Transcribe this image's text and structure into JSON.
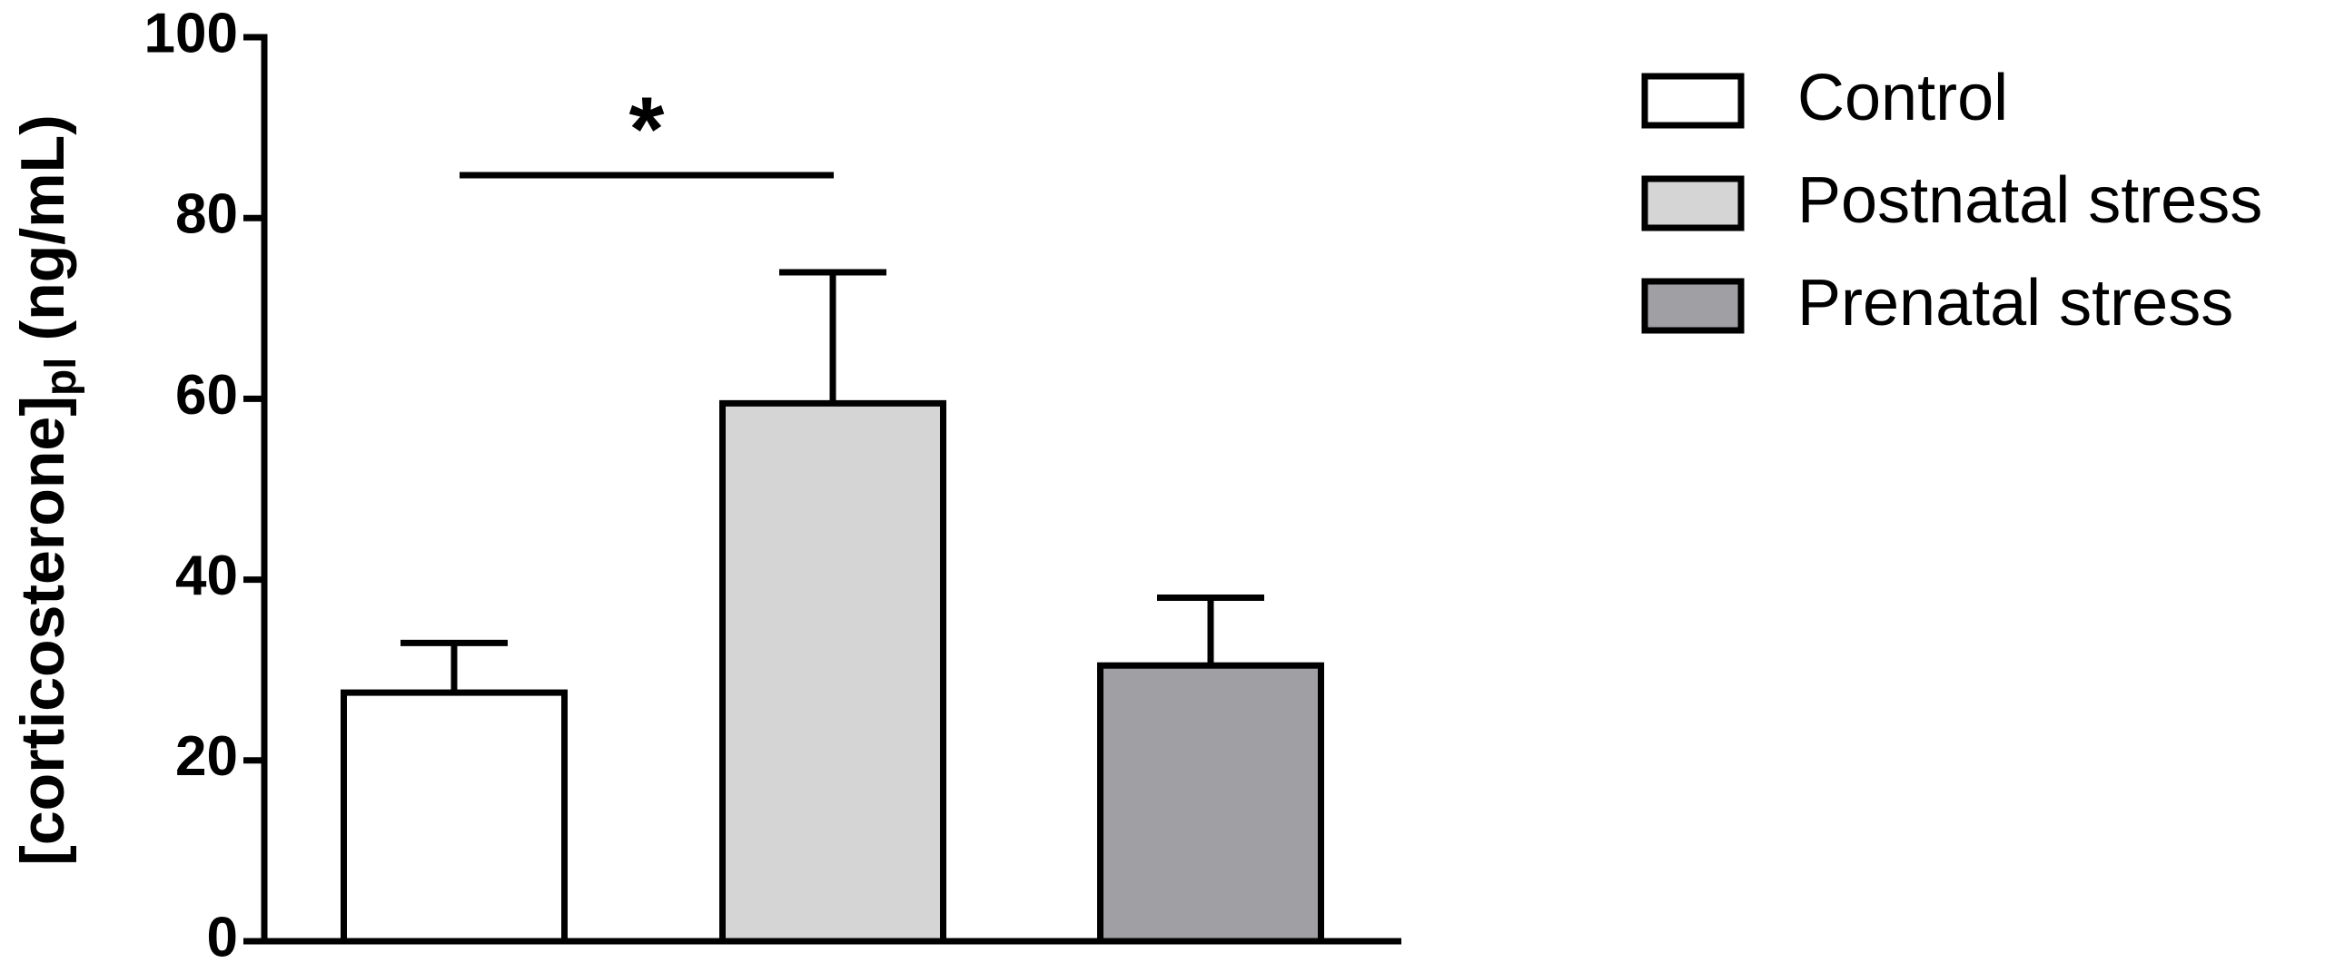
{
  "chart_data": {
    "type": "bar",
    "y_label": {
      "text": "[corticosterone]",
      "subscript": "pl",
      "unit": "(ng/mL)"
    },
    "categories": [
      "Control",
      "Postnatal stress",
      "Prenatal stress"
    ],
    "values": [
      27.5,
      59.5,
      30.5
    ],
    "errors": [
      5.5,
      14.5,
      7.5
    ],
    "colors": [
      "#ffffff",
      "#d5d5d5",
      "#a0a0a4"
    ],
    "ylim": [
      0,
      100
    ],
    "yticks": [
      0,
      20,
      40,
      60,
      80,
      100
    ],
    "annotation": "*",
    "legend": "right"
  }
}
